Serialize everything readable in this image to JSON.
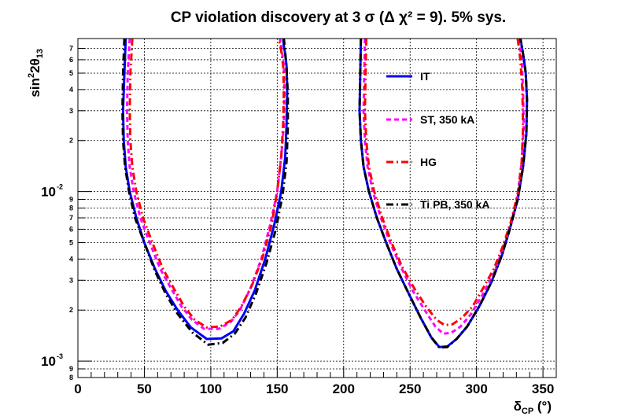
{
  "chart_data": {
    "type": "line",
    "title": "CP violation discovery at 3 σ (Δ χ² = 9). 5% sys.",
    "xlabel": "δCP (°)",
    "ylabel": "sin²2θ13",
    "xlim": [
      0,
      360
    ],
    "ylim": [
      0.0008,
      0.08
    ],
    "yscale": "log",
    "grid": true,
    "legend_position": "top-right",
    "x_ticks": [
      0,
      50,
      100,
      150,
      200,
      250,
      300,
      350
    ],
    "x_tick_labels": [
      "0",
      "50",
      "100",
      "150",
      "200",
      "250",
      "300",
      "350"
    ],
    "y_major_ticks": [
      0.001,
      0.01
    ],
    "y_major_labels": [
      "10",
      "10"
    ],
    "y_major_exponents": [
      "-3",
      "-2"
    ],
    "y_minor_ticks": [
      0.0008,
      0.0009,
      0.002,
      0.003,
      0.004,
      0.005,
      0.006,
      0.007,
      0.008,
      0.009,
      0.02,
      0.03,
      0.04,
      0.05,
      0.06,
      0.07
    ],
    "y_minor_labels": [
      "8",
      "9",
      "2",
      "3",
      "4",
      "5",
      "6",
      "7",
      "8",
      "9",
      "2",
      "3",
      "4",
      "5",
      "6",
      "7"
    ],
    "series": [
      {
        "name": "IT",
        "color": "#0000ff",
        "style": "solid",
        "segments": [
          {
            "x": [
              36,
              35,
              34,
              34.5,
              36,
              39,
              44,
              50,
              58,
              66,
              75,
              85,
              97,
              108,
              117,
              125,
              133,
              141,
              148,
              153,
              156,
              157,
              157.5,
              157,
              156,
              155,
              154.5
            ],
            "y": [
              0.08,
              0.05,
              0.03,
              0.02,
              0.014,
              0.01,
              0.007,
              0.005,
              0.0035,
              0.0026,
              0.002,
              0.00158,
              0.00135,
              0.00136,
              0.0015,
              0.0019,
              0.0026,
              0.004,
              0.0065,
              0.01,
              0.016,
              0.025,
              0.04,
              0.055,
              0.065,
              0.072,
              0.08
            ]
          },
          {
            "x": [
              213,
              212.5,
              212,
              213,
              215,
              219,
              225,
              232,
              240,
              249,
              258,
              266,
              272,
              278,
              285,
              293,
              302,
              311,
              319,
              325,
              331,
              335,
              337.5,
              338,
              337,
              335,
              333
            ],
            "y": [
              0.08,
              0.05,
              0.03,
              0.02,
              0.014,
              0.01,
              0.007,
              0.005,
              0.0035,
              0.0025,
              0.0018,
              0.00138,
              0.00121,
              0.00122,
              0.00135,
              0.0016,
              0.0021,
              0.0029,
              0.0042,
              0.006,
              0.009,
              0.014,
              0.022,
              0.035,
              0.05,
              0.065,
              0.08
            ]
          }
        ]
      },
      {
        "name": "ST, 350 kA",
        "color": "#ff00ff",
        "style": "dashed",
        "segments": [
          {
            "x": [
              39,
              37.5,
              37,
              37.5,
              39,
              42,
              47,
              54,
              62,
              70,
              78,
              86,
              95,
              106,
              115,
              122,
              130,
              138,
              145,
              150,
              153,
              155,
              155.5,
              155,
              153.5,
              152
            ],
            "y": [
              0.08,
              0.05,
              0.03,
              0.02,
              0.014,
              0.01,
              0.007,
              0.005,
              0.0035,
              0.0027,
              0.0021,
              0.00175,
              0.00155,
              0.00155,
              0.0017,
              0.002,
              0.0027,
              0.004,
              0.0065,
              0.01,
              0.016,
              0.025,
              0.04,
              0.055,
              0.068,
              0.08
            ]
          },
          {
            "x": [
              216,
              215.5,
              215,
              216,
              218,
              222,
              228,
              235,
              243,
              252,
              261,
              269,
              275,
              281,
              288,
              296,
              305,
              313,
              320,
              326,
              331,
              334,
              335.5,
              335,
              334,
              332
            ],
            "y": [
              0.08,
              0.05,
              0.03,
              0.02,
              0.014,
              0.01,
              0.007,
              0.005,
              0.0036,
              0.0026,
              0.002,
              0.0016,
              0.00145,
              0.00147,
              0.0016,
              0.0019,
              0.0025,
              0.0033,
              0.0046,
              0.0065,
              0.0095,
              0.015,
              0.024,
              0.04,
              0.06,
              0.08
            ]
          }
        ]
      },
      {
        "name": "HG",
        "color": "#ff0000",
        "style": "dashdot",
        "segments": [
          {
            "x": [
              41,
              39.5,
              39,
              39.5,
              41,
              44,
              49,
              56,
              64,
              72,
              80,
              88,
              97,
              107,
              116,
              123,
              131,
              139,
              146,
              150,
              153,
              154.5,
              155,
              154.5,
              153,
              151
            ],
            "y": [
              0.08,
              0.05,
              0.03,
              0.02,
              0.014,
              0.01,
              0.007,
              0.005,
              0.0035,
              0.0027,
              0.0021,
              0.00175,
              0.00158,
              0.0016,
              0.00175,
              0.0021,
              0.0028,
              0.0041,
              0.0065,
              0.01,
              0.016,
              0.025,
              0.04,
              0.055,
              0.068,
              0.08
            ]
          },
          {
            "x": [
              217,
              216.5,
              216,
              217,
              219,
              223,
              229,
              236,
              244,
              253,
              262,
              270,
              276,
              282,
              289,
              297,
              305,
              313,
              320,
              326,
              331,
              334,
              335,
              334.5,
              333,
              331
            ],
            "y": [
              0.08,
              0.05,
              0.03,
              0.02,
              0.014,
              0.01,
              0.007,
              0.005,
              0.0036,
              0.0027,
              0.0021,
              0.00175,
              0.00163,
              0.00165,
              0.0018,
              0.0021,
              0.0027,
              0.0035,
              0.0048,
              0.0067,
              0.0097,
              0.015,
              0.024,
              0.04,
              0.06,
              0.08
            ]
          }
        ]
      },
      {
        "name": "Ti PB, 350 kA",
        "color": "#000000",
        "style": "dashdot",
        "segments": [
          {
            "x": [
              35,
              34,
              33.5,
              34,
              35.5,
              38.5,
              43,
              50,
              58,
              66,
              75,
              86,
              98,
              109,
              118,
              126,
              134,
              142,
              149,
              154,
              157,
              158,
              158,
              157,
              156,
              155
            ],
            "y": [
              0.08,
              0.05,
              0.03,
              0.02,
              0.014,
              0.01,
              0.007,
              0.005,
              0.0034,
              0.0025,
              0.0019,
              0.00148,
              0.00125,
              0.00128,
              0.00145,
              0.0018,
              0.0025,
              0.0038,
              0.006,
              0.0095,
              0.015,
              0.024,
              0.038,
              0.053,
              0.066,
              0.08
            ]
          },
          {
            "x": [
              213,
              212.5,
              212,
              213,
              215,
              219,
              225,
              232,
              240,
              249,
              258,
              266,
              272,
              278,
              285,
              293,
              302,
              311,
              319,
              325,
              331,
              335,
              337.5,
              338,
              337,
              335,
              333
            ],
            "y": [
              0.08,
              0.05,
              0.03,
              0.02,
              0.014,
              0.01,
              0.007,
              0.005,
              0.0035,
              0.0025,
              0.0018,
              0.00138,
              0.0012,
              0.00121,
              0.00135,
              0.0016,
              0.0021,
              0.0029,
              0.0042,
              0.006,
              0.009,
              0.014,
              0.022,
              0.035,
              0.05,
              0.065,
              0.08
            ]
          }
        ]
      }
    ]
  }
}
